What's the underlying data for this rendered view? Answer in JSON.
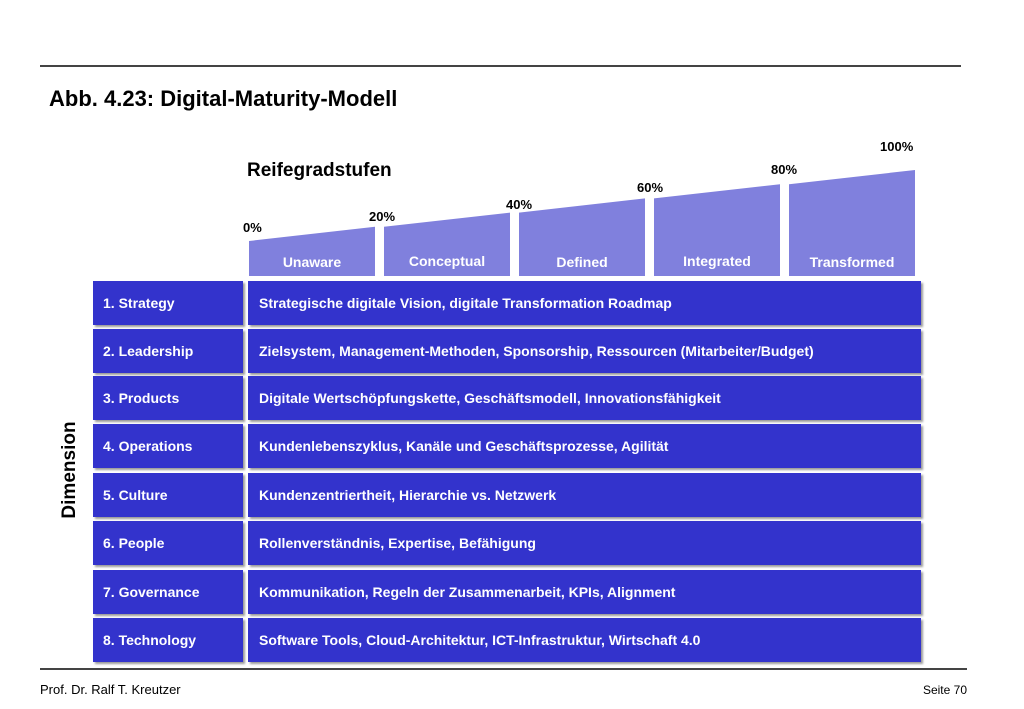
{
  "title": "Abb. 4.23: Digital-Maturity-Modell",
  "levels_heading": "Reifegradstufen",
  "dimension_heading": "Dimension",
  "stages": [
    {
      "percent": "0%",
      "label": "Unaware",
      "value": 0
    },
    {
      "percent": "20%",
      "label": "Conceptual",
      "value": 20
    },
    {
      "percent": "40%",
      "label": "Defined",
      "value": 40
    },
    {
      "percent": "60%",
      "label": "Integrated",
      "value": 60
    },
    {
      "percent": "80%",
      "label": "Transformed",
      "value": 80
    },
    {
      "percent": "100%",
      "label": "",
      "value": 100
    }
  ],
  "dimensions": [
    {
      "name": "1. Strategy",
      "description": "Strategische digitale Vision, digitale Transformation Roadmap"
    },
    {
      "name": "2. Leadership",
      "description": "Zielsystem, Management-Methoden, Sponsorship, Ressourcen (Mitarbeiter/Budget)"
    },
    {
      "name": "3. Products",
      "description": "Digitale Wertschöpfungskette, Geschäftsmodell, Innovationsfähigkeit"
    },
    {
      "name": "4. Operations",
      "description": "Kundenlebenszyklus, Kanäle und Geschäftsprozesse, Agilität"
    },
    {
      "name": "5. Culture",
      "description": "Kundenzentriertheit, Hierarchie vs. Netzwerk"
    },
    {
      "name": "6. People",
      "description": "Rollenverständnis, Expertise, Befähigung"
    },
    {
      "name": "7. Governance",
      "description": "Kommunikation, Regeln der Zusammenarbeit, KPIs, Alignment"
    },
    {
      "name": "8. Technology",
      "description": "Software Tools, Cloud-Architektur, ICT-Infrastruktur, Wirtschaft 4.0"
    }
  ],
  "footer": {
    "author": "Prof. Dr. Ralf T. Kreutzer",
    "page": "Seite 70"
  },
  "colors": {
    "stage_fill": "#8080dd",
    "box_fill": "#3333cc",
    "box_text": "#ffffff"
  }
}
